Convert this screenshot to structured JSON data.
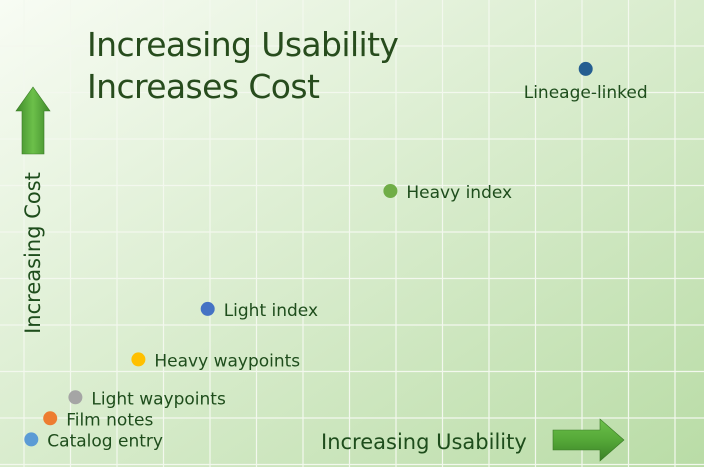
{
  "title_lines": [
    "Increasing Usability",
    "Increases Cost"
  ],
  "colors": {
    "text": "#1e4d1c",
    "title": "#274c1d",
    "arrow": "#52a036",
    "grid": "#f3f8ee",
    "background_top_left": "#f8fcf4",
    "background_bottom_right": "#b9dca6"
  },
  "chart_data": {
    "type": "scatter",
    "title": "Increasing Usability Increases Cost",
    "xlabel": "Increasing Usability",
    "ylabel": "Increasing Cost",
    "grid": true,
    "xlim": [
      0,
      10
    ],
    "ylim": [
      0,
      10
    ],
    "points": [
      {
        "label": "Catalog entry",
        "x": 0.1,
        "y": 0.3,
        "color": "#5b9bd5"
      },
      {
        "label": "Film notes",
        "x": 0.4,
        "y": 0.8,
        "color": "#ed7d31"
      },
      {
        "label": "Light waypoints",
        "x": 0.8,
        "y": 1.3,
        "color": "#a5a5a5"
      },
      {
        "label": "Heavy waypoints",
        "x": 1.8,
        "y": 2.2,
        "color": "#ffc000"
      },
      {
        "label": "Light index",
        "x": 2.9,
        "y": 3.4,
        "color": "#4472c4"
      },
      {
        "label": "Heavy index",
        "x": 5.8,
        "y": 6.2,
        "color": "#70ad47"
      },
      {
        "label": "Lineage-linked",
        "x": 8.9,
        "y": 9.1,
        "color": "#255e91"
      }
    ]
  }
}
